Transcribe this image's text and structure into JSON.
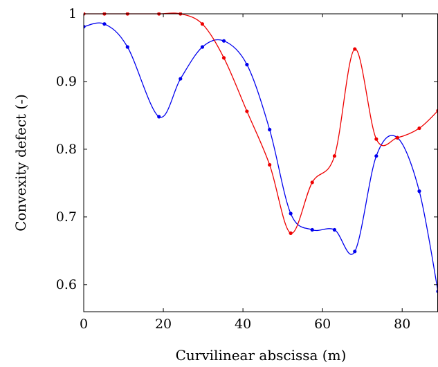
{
  "chart_data": {
    "type": "line",
    "title": "",
    "xlabel": "Curvilinear abscissa (m)",
    "ylabel": "Convexity defect (-)",
    "xlim": [
      0,
      89
    ],
    "ylim": [
      0.56,
      1.0
    ],
    "x_ticks": [
      {
        "value": 0,
        "label": "0"
      },
      {
        "value": 20,
        "label": "20"
      },
      {
        "value": 40,
        "label": "40"
      },
      {
        "value": 60,
        "label": "60"
      },
      {
        "value": 80,
        "label": "80"
      }
    ],
    "y_ticks": [
      {
        "value": 0.6,
        "label": "0.6"
      },
      {
        "value": 0.7,
        "label": "0.7"
      },
      {
        "value": 0.8,
        "label": "0.8"
      },
      {
        "value": 0.9,
        "label": "0.9"
      },
      {
        "value": 1.0,
        "label": "1"
      }
    ],
    "grid": false,
    "legend": "none",
    "series": [
      {
        "color": "#0000ee",
        "points": [
          [
            0,
            0.981
          ],
          [
            5.2,
            0.985
          ],
          [
            11,
            0.951
          ],
          [
            18.9,
            0.848
          ],
          [
            24.3,
            0.904
          ],
          [
            29.8,
            0.951
          ],
          [
            35.2,
            0.96
          ],
          [
            41,
            0.925
          ],
          [
            46.7,
            0.829
          ],
          [
            52,
            0.705
          ],
          [
            57.4,
            0.681
          ],
          [
            63,
            0.681
          ],
          [
            68.1,
            0.649
          ],
          [
            73.5,
            0.79
          ],
          [
            78.8,
            0.817
          ],
          [
            84.3,
            0.738
          ],
          [
            89,
            0.59
          ]
        ]
      },
      {
        "color": "#ee0000",
        "points": [
          [
            0,
            1.0
          ],
          [
            5.2,
            1.0
          ],
          [
            11,
            1.0
          ],
          [
            18.9,
            1.0
          ],
          [
            24.3,
            1.0
          ],
          [
            29.8,
            0.985
          ],
          [
            35.2,
            0.935
          ],
          [
            41,
            0.856
          ],
          [
            46.7,
            0.777
          ],
          [
            52,
            0.676
          ],
          [
            57.4,
            0.751
          ],
          [
            63,
            0.79
          ],
          [
            68.1,
            0.948
          ],
          [
            73.5,
            0.815
          ],
          [
            78.8,
            0.817
          ],
          [
            84.3,
            0.831
          ],
          [
            89,
            0.857
          ]
        ]
      }
    ]
  }
}
